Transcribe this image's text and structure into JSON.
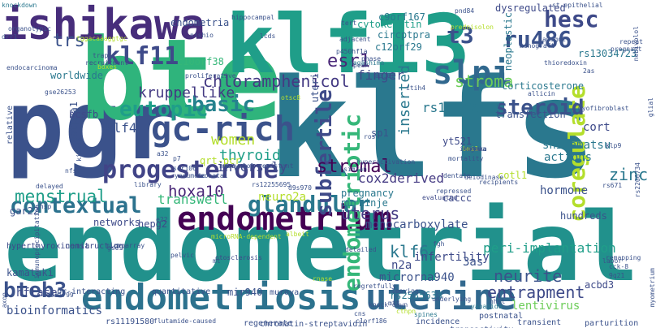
{
  "colors": {
    "background": "#ffffff",
    "palette": [
      "#440154",
      "#482677",
      "#3e4a89",
      "#31688e",
      "#26828e",
      "#1f9e89",
      "#35b779",
      "#6dcd59",
      "#b4de2c",
      "#fde725"
    ]
  },
  "words": [
    {
      "text": "klfs",
      "color": "#2a788e"
    },
    {
      "text": "endometrial",
      "color": "#21918c"
    },
    {
      "text": "pgr",
      "color": "#3b528b"
    },
    {
      "text": "bte",
      "color": "#2fb47c"
    },
    {
      "text": "klf13",
      "color": "#1f9e89"
    },
    {
      "text": "ishikawa",
      "color": "#472d7b"
    },
    {
      "text": "endometriosis",
      "color": "#2c728e"
    },
    {
      "text": "uterine",
      "color": "#31688e"
    },
    {
      "text": "endometrium",
      "color": "#440154"
    },
    {
      "text": "gc-rich",
      "color": "#3b528b"
    },
    {
      "text": "progesterone",
      "color": "#414487"
    },
    {
      "text": "slpi",
      "color": "#31688e"
    },
    {
      "text": "klf11",
      "color": "#3e4a89"
    },
    {
      "text": "contextual",
      "color": "#2c728e"
    },
    {
      "text": "glandular",
      "color": "#2a788e"
    },
    {
      "text": "subfertile",
      "color": "#3e4a89"
    },
    {
      "text": "endometriotic",
      "color": "#35b779"
    },
    {
      "text": "coregulate",
      "color": "#b4de2c"
    },
    {
      "text": "ru486",
      "color": "#3b528b"
    },
    {
      "text": "hesc",
      "color": "#3e4a89"
    },
    {
      "text": "t3",
      "color": "#3b528b"
    },
    {
      "text": "eutopic",
      "color": "#1f9e89"
    },
    {
      "text": "basic",
      "color": "#26828e"
    },
    {
      "text": "steroid",
      "color": "#3b528b"
    },
    {
      "text": "chloramphenicol",
      "color": "#443a83"
    },
    {
      "text": "bteb3",
      "color": "#3b528b"
    },
    {
      "text": "esr1",
      "color": "#482677"
    },
    {
      "text": "kruppellike",
      "color": "#443a83"
    },
    {
      "text": "women",
      "color": "#b4de2c"
    },
    {
      "text": "thyroid",
      "color": "#1f9e89"
    },
    {
      "text": "stromal",
      "color": "#440154"
    },
    {
      "text": "menstrual",
      "color": "#1f9e89"
    },
    {
      "text": "hoxa10",
      "color": "#482677"
    },
    {
      "text": "uterus",
      "color": "#443a83"
    },
    {
      "text": "entrapment",
      "color": "#3e4a89"
    },
    {
      "text": "neurite",
      "color": "#3b528b"
    },
    {
      "text": "stroma",
      "color": "#6dcd59"
    },
    {
      "text": "klf4",
      "color": "#3b528b"
    },
    {
      "text": "klf6",
      "color": "#2a788e"
    },
    {
      "text": "zinc",
      "color": "#2a788e"
    },
    {
      "text": "inserted",
      "color": "#2a788e"
    },
    {
      "text": "trs",
      "color": "#3b528b"
    },
    {
      "text": "finger",
      "color": "#3e4a89"
    },
    {
      "text": "monocarboxylate",
      "color": "#3b528b"
    },
    {
      "text": "transwell",
      "color": "#35b779"
    },
    {
      "text": "peri-implantation",
      "color": "#1f9e89"
    },
    {
      "text": "inversely",
      "color": "#3e4a89"
    },
    {
      "text": "cox2derived",
      "color": "#443a83"
    },
    {
      "text": "rs11142387",
      "color": "#2a788e"
    },
    {
      "text": "hormone",
      "color": "#3b528b"
    },
    {
      "text": "cort",
      "color": "#3e4a89"
    },
    {
      "text": "shiramatsu",
      "color": "#2a788e"
    },
    {
      "text": "actions",
      "color": "#2a788e"
    },
    {
      "text": "neuro2a",
      "color": "#b4de2c"
    },
    {
      "text": "infertility",
      "color": "#3e4a89"
    },
    {
      "text": "microrna940",
      "color": "#3b528b"
    },
    {
      "text": "n2a",
      "color": "#3e4a89"
    },
    {
      "text": "3as",
      "color": "#3b528b"
    },
    {
      "text": "hflase",
      "color": "#3e4a89"
    },
    {
      "text": "bioinformatics",
      "color": "#3b528b"
    },
    {
      "text": "lentivirus",
      "color": "#6dcd59"
    },
    {
      "text": "cytokeratin",
      "color": "#1f9e89"
    },
    {
      "text": "endometria",
      "color": "#3b528b"
    },
    {
      "text": "knockdown",
      "color": "#2a788e"
    },
    {
      "text": "c9orf167",
      "color": "#2a788e"
    },
    {
      "text": "c12orf29",
      "color": "#2a788e"
    },
    {
      "text": "circptpra",
      "color": "#2a788e"
    },
    {
      "text": "uteri",
      "color": "#3b528b"
    },
    {
      "text": "adjacent",
      "color": "#3b528b"
    },
    {
      "text": "p450hf1a",
      "color": "#3b528b"
    },
    {
      "text": "nagashima",
      "color": "#2a788e"
    },
    {
      "text": "c10orf38",
      "color": "#35b779"
    },
    {
      "text": "proliferative",
      "color": "#3b528b"
    },
    {
      "text": "worldwide",
      "color": "#2a788e"
    },
    {
      "text": "oatp3a1",
      "color": "#3b528b"
    },
    {
      "text": "bcsfb",
      "color": "#3e4a89"
    },
    {
      "text": "relative",
      "color": "#3b528b"
    },
    {
      "text": "gse26253",
      "color": "#3b528b"
    },
    {
      "text": "dysregulated",
      "color": "#3e4a89"
    },
    {
      "text": "corticosterone",
      "color": "#2a788e"
    },
    {
      "text": "rs13034723",
      "color": "#2a788e"
    },
    {
      "text": "neoplastic",
      "color": "#2a788e"
    },
    {
      "text": "transfection",
      "color": "#3b528b"
    },
    {
      "text": "xenograft",
      "color": "#3b528b"
    },
    {
      "text": "allicin",
      "color": "#3b528b"
    },
    {
      "text": "klp9",
      "color": "#3b528b"
    },
    {
      "text": "sp1",
      "color": "#3b528b"
    },
    {
      "text": "cotl1",
      "color": "#b4de2c"
    },
    {
      "text": "yt521",
      "color": "#3e4a89"
    },
    {
      "text": "pregnancy",
      "color": "#2a788e"
    },
    {
      "text": "purkinje",
      "color": "#2a788e"
    },
    {
      "text": "gar22",
      "color": "#3b528b"
    },
    {
      "text": "networks",
      "color": "#3e4a89"
    },
    {
      "text": "hepg2",
      "color": "#3e4a89"
    },
    {
      "text": "caccc",
      "color": "#3e4a89"
    },
    {
      "text": "hundreds",
      "color": "#3b528b"
    },
    {
      "text": "rs2206734",
      "color": "#3b528b"
    },
    {
      "text": "qrt-pcr",
      "color": "#b4de2c"
    },
    {
      "text": "hyperthyroxinemia",
      "color": "#3e4a89"
    },
    {
      "text": "constructing",
      "color": "#3e4a89"
    },
    {
      "text": "microarray",
      "color": "#3b528b"
    },
    {
      "text": "kamataki",
      "color": "#3b528b"
    },
    {
      "text": "otosclerosis",
      "color": "#3e4a89"
    },
    {
      "text": "spines",
      "color": "#2a788e"
    },
    {
      "text": "rs2535633",
      "color": "#2a788e"
    },
    {
      "text": "mir940",
      "color": "#3b528b"
    },
    {
      "text": "muroya",
      "color": "#3b528b"
    },
    {
      "text": "regenerate",
      "color": "#3b528b"
    },
    {
      "text": "chromatin-streptavidin",
      "color": "#3b528b"
    },
    {
      "text": "incidence",
      "color": "#3b528b"
    },
    {
      "text": "transient",
      "color": "#3b528b"
    },
    {
      "text": "parturition",
      "color": "#3b528b"
    },
    {
      "text": "postnatal",
      "color": "#3b528b"
    },
    {
      "text": "yanagida",
      "color": "#2a788e"
    },
    {
      "text": "transactivity",
      "color": "#3b528b"
    },
    {
      "text": "acbd3",
      "color": "#3e4a89"
    },
    {
      "text": "flutamide-caused",
      "color": "#3b528b"
    },
    {
      "text": "rs11191580",
      "color": "#3b528b"
    },
    {
      "text": "pr-interacting",
      "color": "#3b528b"
    },
    {
      "text": "quantitative",
      "color": "#3b528b"
    },
    {
      "text": "d9s1799",
      "color": "#3b528b"
    },
    {
      "text": "hippocampal",
      "color": "#3b528b"
    },
    {
      "text": "regretfully",
      "color": "#3b528b"
    },
    {
      "text": "detailed",
      "color": "#3b528b"
    },
    {
      "text": "repressed",
      "color": "#3b528b"
    },
    {
      "text": "deiodinase",
      "color": "#3b528b"
    },
    {
      "text": "mortality",
      "color": "#3b528b"
    },
    {
      "text": "evaluated",
      "color": "#3e4a89"
    },
    {
      "text": "labor",
      "color": "#3b528b"
    },
    {
      "text": "repeat",
      "color": "#3b528b"
    },
    {
      "text": "pregnant",
      "color": "#3b528b"
    },
    {
      "text": "amigo2",
      "color": "#3b528b"
    },
    {
      "text": "thioredoxin",
      "color": "#3b528b"
    },
    {
      "text": "st-epithelial",
      "color": "#3b528b"
    },
    {
      "text": "recruitment",
      "color": "#3e4a89"
    },
    {
      "text": "library",
      "color": "#3b528b"
    },
    {
      "text": "trap",
      "color": "#3b528b"
    },
    {
      "text": "boxes",
      "color": "#b4de2c"
    },
    {
      "text": "neonatal",
      "color": "#3b528b"
    },
    {
      "text": "simian",
      "color": "#3b528b"
    },
    {
      "text": "ser106",
      "color": "#3b528b"
    },
    {
      "text": "yasumoto",
      "color": "#3b528b"
    },
    {
      "text": "nfse",
      "color": "#3b528b"
    },
    {
      "text": "chsp",
      "color": "#3b528b"
    },
    {
      "text": "delayed",
      "color": "#3b528b"
    },
    {
      "text": "immunoprecipitation",
      "color": "#3b528b"
    },
    {
      "text": "dentate",
      "color": "#3b528b"
    },
    {
      "text": "recipients",
      "color": "#3b528b"
    },
    {
      "text": "rs671",
      "color": "#3b528b"
    },
    {
      "text": "pelvic",
      "color": "#3b528b"
    },
    {
      "text": "e22",
      "color": "#3b528b"
    },
    {
      "text": "leaving",
      "color": "#3b528b"
    },
    {
      "text": "cns",
      "color": "#3b528b"
    },
    {
      "text": "cthpn",
      "color": "#b4de2c"
    },
    {
      "text": "knock-down",
      "color": "#3b528b"
    },
    {
      "text": "underlying",
      "color": "#3b528b"
    },
    {
      "text": "mtt",
      "color": "#3b528b"
    },
    {
      "text": "fos",
      "color": "#3b528b"
    },
    {
      "text": "gse",
      "color": "#3b528b"
    },
    {
      "text": "ros",
      "color": "#3b528b"
    },
    {
      "text": "cck-8",
      "color": "#3b528b"
    },
    {
      "text": "9q21",
      "color": "#3b528b"
    },
    {
      "text": "remapping",
      "color": "#3b528b"
    },
    {
      "text": "hyperactivation",
      "color": "#3b528b"
    },
    {
      "text": "sogawa",
      "color": "#3b528b"
    },
    {
      "text": "itih4",
      "color": "#3b528b"
    },
    {
      "text": "bmi1",
      "color": "#b4de2c"
    },
    {
      "text": "d9s970",
      "color": "#3b528b"
    },
    {
      "text": "kitada",
      "color": "#3b528b"
    },
    {
      "text": "p7",
      "color": "#3b528b"
    },
    {
      "text": "a32",
      "color": "#3b528b"
    },
    {
      "text": "tggacaaaggtgc",
      "color": "#b4de2c"
    },
    {
      "text": "organotypic",
      "color": "#3b528b"
    },
    {
      "text": "endocarcinoma",
      "color": "#3b528b"
    },
    {
      "text": "lcds",
      "color": "#3b528b"
    },
    {
      "text": "tert",
      "color": "#3b528b"
    },
    {
      "text": "nishio",
      "color": "#3b528b"
    },
    {
      "text": "phase",
      "color": "#3b528b"
    },
    {
      "text": "peak",
      "color": "#3b528b"
    },
    {
      "text": "2as",
      "color": "#3b528b"
    },
    {
      "text": "nebivolol",
      "color": "#3b528b"
    },
    {
      "text": "axon",
      "color": "#3b528b"
    },
    {
      "text": "myometrium",
      "color": "#3b528b"
    },
    {
      "text": "pnd84",
      "color": "#3b528b"
    },
    {
      "text": "prednisolon",
      "color": "#b4de2c"
    },
    {
      "text": "drr1",
      "color": "#3b528b"
    },
    {
      "text": "myofibroblast",
      "color": "#3b528b"
    },
    {
      "text": "glial",
      "color": "#3b528b"
    },
    {
      "text": "nebivolol-resistant",
      "color": "#3b528b"
    },
    {
      "text": "rs12255695",
      "color": "#3b528b"
    },
    {
      "text": "albeit",
      "color": "#b4de2c"
    },
    {
      "text": "microRNA-dependent",
      "color": "#b4de2c"
    },
    {
      "text": "rnase",
      "color": "#b4de2c"
    },
    {
      "text": "c1orf186",
      "color": "#3b528b"
    },
    {
      "text": "nhsl",
      "color": "#3b528b"
    },
    {
      "text": "imamaka",
      "color": "#3b528b"
    },
    {
      "text": "otsc8",
      "color": "#b4de2c"
    },
    {
      "text": "a3.01",
      "color": "#3b528b"
    },
    {
      "text": "mt",
      "color": "#3b528b"
    },
    {
      "text": "fgh",
      "color": "#3b528b"
    }
  ]
}
